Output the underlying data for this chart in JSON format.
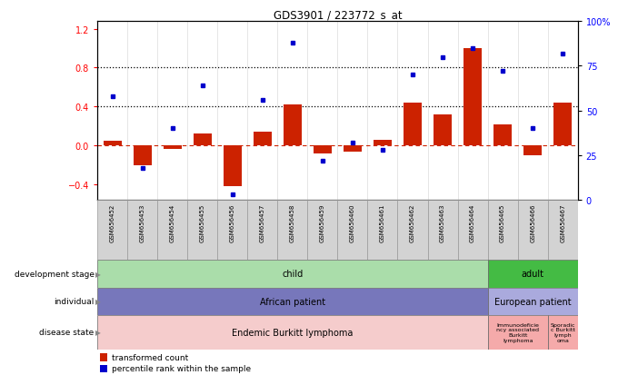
{
  "title": "GDS3901 / 223772_s_at",
  "samples": [
    "GSM656452",
    "GSM656453",
    "GSM656454",
    "GSM656455",
    "GSM656456",
    "GSM656457",
    "GSM656458",
    "GSM656459",
    "GSM656460",
    "GSM656461",
    "GSM656462",
    "GSM656463",
    "GSM656464",
    "GSM656465",
    "GSM656466",
    "GSM656467"
  ],
  "transformed_count": [
    0.05,
    -0.2,
    -0.04,
    0.12,
    -0.42,
    0.14,
    0.42,
    -0.08,
    -0.06,
    0.06,
    0.44,
    0.32,
    1.0,
    0.22,
    -0.1,
    0.44
  ],
  "percentile_rank": [
    58,
    18,
    40,
    64,
    3,
    56,
    88,
    22,
    32,
    28,
    70,
    80,
    85,
    72,
    40,
    82
  ],
  "bar_color": "#cc2200",
  "dot_color": "#0000cc",
  "development_stage": [
    {
      "label": "child",
      "start": 0,
      "end": 13,
      "color": "#aaddaa"
    },
    {
      "label": "adult",
      "start": 13,
      "end": 16,
      "color": "#44bb44"
    }
  ],
  "individual": [
    {
      "label": "African patient",
      "start": 0,
      "end": 13,
      "color": "#7777bb"
    },
    {
      "label": "European patient",
      "start": 13,
      "end": 16,
      "color": "#aaaadd"
    }
  ],
  "disease_state": [
    {
      "label": "Endemic Burkitt lymphoma",
      "start": 0,
      "end": 13,
      "color": "#f5cccc"
    },
    {
      "label": "Immunodeficiency associated Burkitt lymphoma",
      "start": 13,
      "end": 15,
      "color": "#f5aaaa"
    },
    {
      "label": "Sporadic Burkitt lymphoma",
      "start": 15,
      "end": 16,
      "color": "#f5aaaa"
    }
  ],
  "ylim_left": [
    -0.56,
    1.28
  ],
  "ylim_right": [
    0,
    100
  ],
  "yticks_left": [
    -0.4,
    0.0,
    0.4,
    0.8,
    1.2
  ],
  "yticks_right": [
    0,
    25,
    50,
    75,
    100
  ],
  "hlines": [
    0.4,
    0.8
  ],
  "zero_line": 0.0,
  "background_color": "#ffffff"
}
